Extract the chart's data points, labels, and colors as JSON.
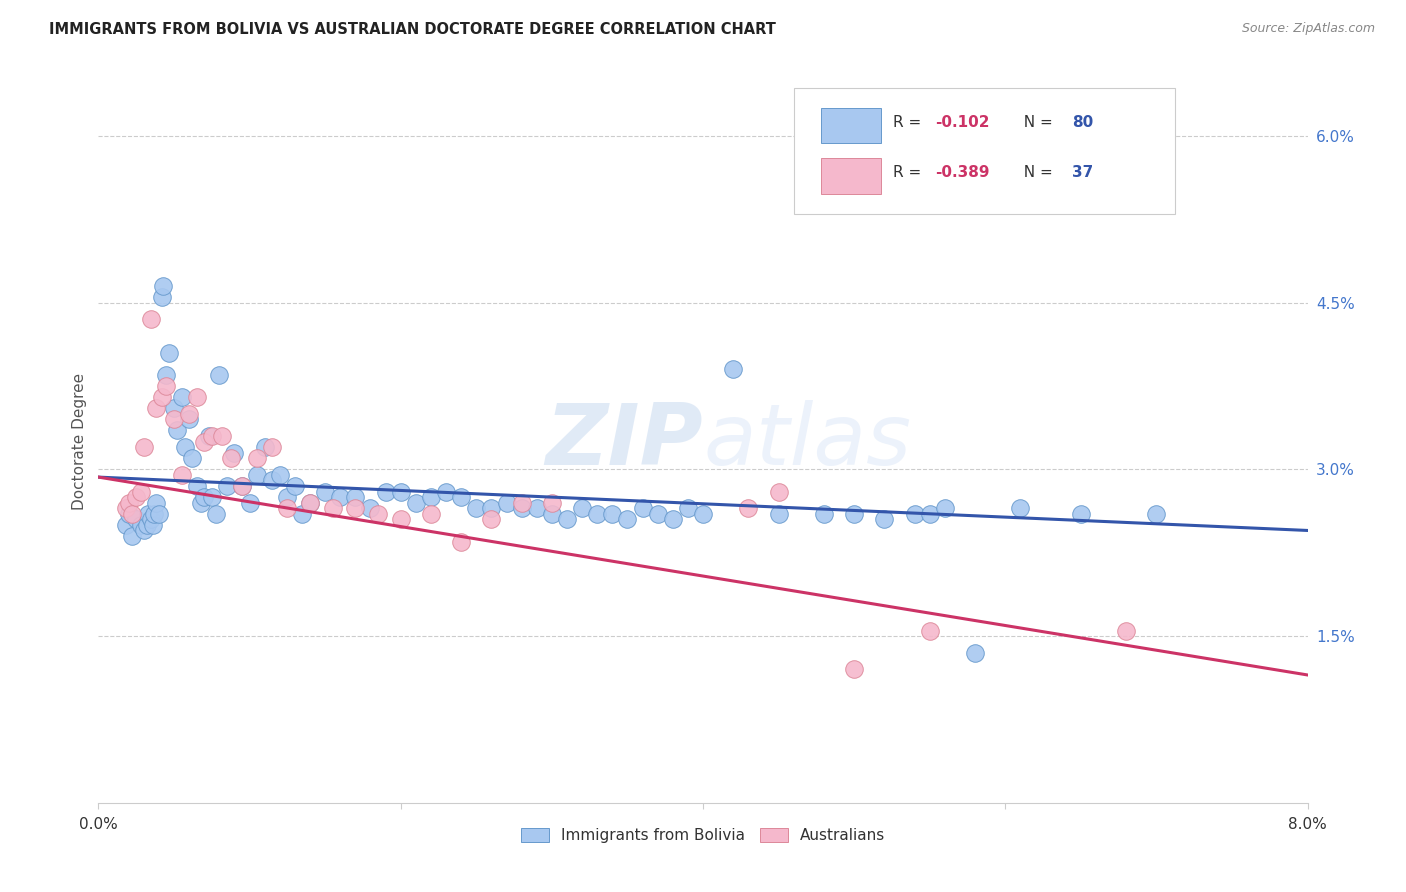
{
  "title": "IMMIGRANTS FROM BOLIVIA VS AUSTRALIAN DOCTORATE DEGREE CORRELATION CHART",
  "source": "Source: ZipAtlas.com",
  "ylabel": "Doctorate Degree",
  "xlim": [
    0.0,
    8.0
  ],
  "ylim": [
    0.0,
    6.5
  ],
  "yticks": [
    1.5,
    3.0,
    4.5,
    6.0
  ],
  "ytick_labels": [
    "1.5%",
    "3.0%",
    "4.5%",
    "6.0%"
  ],
  "blue_color": "#a8c8f0",
  "pink_color": "#f5b8cc",
  "blue_edge_color": "#6699cc",
  "pink_edge_color": "#dd8899",
  "blue_line_color": "#3355aa",
  "pink_line_color": "#cc3366",
  "background_color": "#ffffff",
  "watermark_color": "#dde8f5",
  "blue_R": -0.102,
  "blue_N": 80,
  "pink_R": -0.389,
  "pink_N": 37,
  "blue_line_start": 2.93,
  "blue_line_end": 2.45,
  "pink_line_start": 2.93,
  "pink_line_end": 1.15,
  "blue_scatter_x": [
    0.18,
    0.2,
    0.22,
    0.25,
    0.28,
    0.3,
    0.32,
    0.33,
    0.35,
    0.36,
    0.37,
    0.38,
    0.4,
    0.42,
    0.43,
    0.45,
    0.47,
    0.5,
    0.52,
    0.55,
    0.57,
    0.6,
    0.62,
    0.65,
    0.68,
    0.7,
    0.73,
    0.75,
    0.78,
    0.8,
    0.85,
    0.9,
    0.95,
    1.0,
    1.05,
    1.1,
    1.15,
    1.2,
    1.25,
    1.3,
    1.35,
    1.4,
    1.5,
    1.6,
    1.7,
    1.8,
    1.9,
    2.0,
    2.1,
    2.2,
    2.3,
    2.4,
    2.5,
    2.6,
    2.7,
    2.8,
    2.9,
    3.0,
    3.1,
    3.2,
    3.3,
    3.4,
    3.5,
    3.6,
    3.7,
    3.8,
    3.9,
    4.0,
    4.2,
    4.5,
    4.8,
    5.0,
    5.2,
    5.4,
    5.5,
    5.6,
    5.8,
    6.1,
    6.5,
    7.0
  ],
  "blue_scatter_y": [
    2.5,
    2.6,
    2.4,
    2.55,
    2.5,
    2.45,
    2.5,
    2.6,
    2.55,
    2.5,
    2.6,
    2.7,
    2.6,
    4.55,
    4.65,
    3.85,
    4.05,
    3.55,
    3.35,
    3.65,
    3.2,
    3.45,
    3.1,
    2.85,
    2.7,
    2.75,
    3.3,
    2.75,
    2.6,
    3.85,
    2.85,
    3.15,
    2.85,
    2.7,
    2.95,
    3.2,
    2.9,
    2.95,
    2.75,
    2.85,
    2.6,
    2.7,
    2.8,
    2.75,
    2.75,
    2.65,
    2.8,
    2.8,
    2.7,
    2.75,
    2.8,
    2.75,
    2.65,
    2.65,
    2.7,
    2.65,
    2.65,
    2.6,
    2.55,
    2.65,
    2.6,
    2.6,
    2.55,
    2.65,
    2.6,
    2.55,
    2.65,
    2.6,
    3.9,
    2.6,
    2.6,
    2.6,
    2.55,
    2.6,
    2.6,
    2.65,
    1.35,
    2.65,
    2.6,
    2.6
  ],
  "pink_scatter_x": [
    0.18,
    0.2,
    0.22,
    0.25,
    0.28,
    0.3,
    0.35,
    0.38,
    0.42,
    0.45,
    0.5,
    0.55,
    0.6,
    0.65,
    0.7,
    0.75,
    0.82,
    0.88,
    0.95,
    1.05,
    1.15,
    1.25,
    1.4,
    1.55,
    1.7,
    1.85,
    2.0,
    2.2,
    2.4,
    2.6,
    2.8,
    3.0,
    4.3,
    4.5,
    5.0,
    5.5,
    6.8
  ],
  "pink_scatter_y": [
    2.65,
    2.7,
    2.6,
    2.75,
    2.8,
    3.2,
    4.35,
    3.55,
    3.65,
    3.75,
    3.45,
    2.95,
    3.5,
    3.65,
    3.25,
    3.3,
    3.3,
    3.1,
    2.85,
    3.1,
    3.2,
    2.65,
    2.7,
    2.65,
    2.65,
    2.6,
    2.55,
    2.6,
    2.35,
    2.55,
    2.7,
    2.7,
    2.65,
    2.8,
    1.2,
    1.55,
    1.55
  ]
}
